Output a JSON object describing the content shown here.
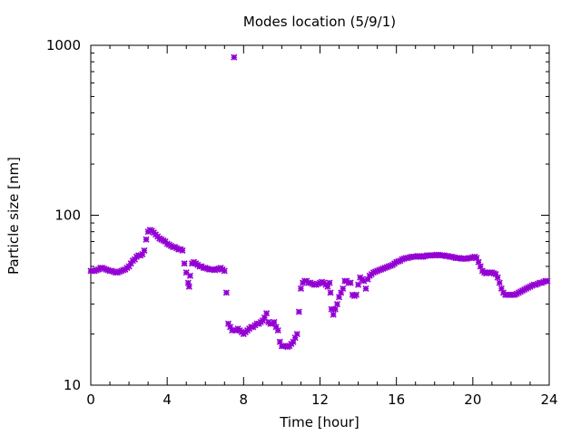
{
  "chart_data": {
    "type": "scatter",
    "title": "Modes location (5/9/1)",
    "xlabel": "Time [hour]",
    "ylabel": "Particle size [nm]",
    "xlim": [
      0,
      24
    ],
    "ylim": [
      10,
      1000
    ],
    "yscale": "log",
    "grid": false,
    "legend": "none",
    "x_ticks": [
      0,
      4,
      8,
      12,
      16,
      20,
      24
    ],
    "x_tick_labels": [
      "0",
      "4",
      "8",
      "12",
      "16",
      "20",
      "24"
    ],
    "y_ticks": [
      10,
      100,
      1000
    ],
    "y_tick_labels": [
      "10",
      "100",
      "1000"
    ],
    "marker_color": "#9400d3",
    "series": [
      {
        "marker": "asterisk",
        "points": [
          [
            0.0,
            47
          ],
          [
            0.1,
            47
          ],
          [
            0.2,
            47
          ],
          [
            0.3,
            47.5
          ],
          [
            0.4,
            48
          ],
          [
            0.5,
            49
          ],
          [
            0.6,
            49
          ],
          [
            0.7,
            48.5
          ],
          [
            0.8,
            48
          ],
          [
            0.9,
            47.5
          ],
          [
            1.0,
            47
          ],
          [
            1.1,
            47
          ],
          [
            1.2,
            46.5
          ],
          [
            1.3,
            46
          ],
          [
            1.4,
            46
          ],
          [
            1.5,
            46.5
          ],
          [
            1.6,
            47
          ],
          [
            1.7,
            47.5
          ],
          [
            1.8,
            48
          ],
          [
            1.9,
            49
          ],
          [
            2.0,
            50
          ],
          [
            2.1,
            52
          ],
          [
            2.2,
            54
          ],
          [
            2.3,
            55
          ],
          [
            2.4,
            57
          ],
          [
            2.5,
            58
          ],
          [
            2.6,
            58
          ],
          [
            2.7,
            59
          ],
          [
            2.8,
            62
          ],
          [
            2.9,
            72
          ],
          [
            3.0,
            80
          ],
          [
            3.1,
            82
          ],
          [
            3.2,
            81
          ],
          [
            3.3,
            79
          ],
          [
            3.4,
            77
          ],
          [
            3.5,
            75
          ],
          [
            3.6,
            73
          ],
          [
            3.7,
            72
          ],
          [
            3.8,
            71
          ],
          [
            3.9,
            70
          ],
          [
            4.0,
            68
          ],
          [
            4.1,
            67
          ],
          [
            4.2,
            66
          ],
          [
            4.3,
            65
          ],
          [
            4.4,
            65
          ],
          [
            4.5,
            64
          ],
          [
            4.6,
            63
          ],
          [
            4.7,
            63
          ],
          [
            4.8,
            62
          ],
          [
            4.9,
            52
          ],
          [
            5.0,
            46
          ],
          [
            5.1,
            40
          ],
          [
            5.15,
            38
          ],
          [
            5.2,
            44
          ],
          [
            5.3,
            52
          ],
          [
            5.4,
            53
          ],
          [
            5.5,
            52
          ],
          [
            5.6,
            51
          ],
          [
            5.7,
            50
          ],
          [
            5.8,
            50
          ],
          [
            5.9,
            49
          ],
          [
            6.0,
            49
          ],
          [
            6.1,
            48.5
          ],
          [
            6.2,
            48
          ],
          [
            6.3,
            48
          ],
          [
            6.4,
            48
          ],
          [
            6.5,
            47.5
          ],
          [
            6.6,
            48
          ],
          [
            6.7,
            48.5
          ],
          [
            6.8,
            49
          ],
          [
            6.9,
            48
          ],
          [
            7.0,
            47
          ],
          [
            7.1,
            35
          ],
          [
            7.2,
            23
          ],
          [
            7.3,
            22
          ],
          [
            7.4,
            21
          ],
          [
            7.5,
            850
          ],
          [
            7.6,
            21
          ],
          [
            7.7,
            21.5
          ],
          [
            7.8,
            21
          ],
          [
            7.9,
            20.5
          ],
          [
            8.0,
            20
          ],
          [
            8.1,
            20.5
          ],
          [
            8.2,
            21
          ],
          [
            8.3,
            21.5
          ],
          [
            8.4,
            22
          ],
          [
            8.5,
            22
          ],
          [
            8.6,
            22.5
          ],
          [
            8.7,
            23
          ],
          [
            8.8,
            23
          ],
          [
            8.9,
            23.5
          ],
          [
            9.0,
            24
          ],
          [
            9.1,
            25
          ],
          [
            9.2,
            26.5
          ],
          [
            9.3,
            23.5
          ],
          [
            9.4,
            23
          ],
          [
            9.5,
            23
          ],
          [
            9.6,
            23.5
          ],
          [
            9.7,
            22
          ],
          [
            9.8,
            21
          ],
          [
            9.9,
            18
          ],
          [
            10.0,
            17
          ],
          [
            10.1,
            17
          ],
          [
            10.2,
            17
          ],
          [
            10.3,
            16.8
          ],
          [
            10.4,
            17
          ],
          [
            10.5,
            17.5
          ],
          [
            10.6,
            18
          ],
          [
            10.7,
            19
          ],
          [
            10.8,
            20
          ],
          [
            10.9,
            27
          ],
          [
            11.0,
            37
          ],
          [
            11.1,
            40
          ],
          [
            11.2,
            41
          ],
          [
            11.3,
            41
          ],
          [
            11.4,
            40
          ],
          [
            11.5,
            40
          ],
          [
            11.6,
            39.5
          ],
          [
            11.7,
            39
          ],
          [
            11.8,
            39
          ],
          [
            11.9,
            39.5
          ],
          [
            12.0,
            40
          ],
          [
            12.1,
            40.5
          ],
          [
            12.2,
            40
          ],
          [
            12.3,
            39
          ],
          [
            12.4,
            38
          ],
          [
            12.5,
            40
          ],
          [
            12.55,
            35
          ],
          [
            12.6,
            28
          ],
          [
            12.7,
            26
          ],
          [
            12.8,
            28
          ],
          [
            12.9,
            30
          ],
          [
            13.0,
            33
          ],
          [
            13.1,
            35
          ],
          [
            13.2,
            37
          ],
          [
            13.3,
            41
          ],
          [
            13.4,
            41
          ],
          [
            13.5,
            40
          ],
          [
            13.6,
            40
          ],
          [
            13.7,
            34
          ],
          [
            13.8,
            33.5
          ],
          [
            13.9,
            34
          ],
          [
            14.0,
            39
          ],
          [
            14.1,
            43
          ],
          [
            14.2,
            42
          ],
          [
            14.3,
            41
          ],
          [
            14.4,
            37
          ],
          [
            14.5,
            42
          ],
          [
            14.6,
            44
          ],
          [
            14.7,
            45
          ],
          [
            14.8,
            46
          ],
          [
            14.9,
            46.5
          ],
          [
            15.0,
            47
          ],
          [
            15.1,
            47.5
          ],
          [
            15.2,
            48
          ],
          [
            15.3,
            48.5
          ],
          [
            15.4,
            49
          ],
          [
            15.5,
            49.5
          ],
          [
            15.6,
            50
          ],
          [
            15.7,
            50.5
          ],
          [
            15.8,
            51
          ],
          [
            15.9,
            52
          ],
          [
            16.0,
            53
          ],
          [
            16.1,
            53.5
          ],
          [
            16.2,
            54
          ],
          [
            16.3,
            55
          ],
          [
            16.4,
            55.5
          ],
          [
            16.5,
            56
          ],
          [
            16.6,
            56
          ],
          [
            16.7,
            56.5
          ],
          [
            16.8,
            57
          ],
          [
            16.9,
            57
          ],
          [
            17.0,
            57
          ],
          [
            17.1,
            57.5
          ],
          [
            17.2,
            57.5
          ],
          [
            17.3,
            57
          ],
          [
            17.4,
            57
          ],
          [
            17.5,
            57.5
          ],
          [
            17.6,
            58
          ],
          [
            17.7,
            58
          ],
          [
            17.8,
            58
          ],
          [
            17.9,
            58
          ],
          [
            18.0,
            58
          ],
          [
            18.1,
            58.5
          ],
          [
            18.2,
            58.5
          ],
          [
            18.3,
            58
          ],
          [
            18.4,
            58
          ],
          [
            18.5,
            58
          ],
          [
            18.6,
            57.5
          ],
          [
            18.7,
            57.5
          ],
          [
            18.8,
            57
          ],
          [
            18.9,
            57
          ],
          [
            19.0,
            56.5
          ],
          [
            19.1,
            56
          ],
          [
            19.2,
            56
          ],
          [
            19.3,
            56
          ],
          [
            19.4,
            55.5
          ],
          [
            19.5,
            55.5
          ],
          [
            19.6,
            55.5
          ],
          [
            19.7,
            55.5
          ],
          [
            19.8,
            56
          ],
          [
            19.9,
            56
          ],
          [
            20.0,
            56.5
          ],
          [
            20.1,
            57
          ],
          [
            20.2,
            56
          ],
          [
            20.3,
            53
          ],
          [
            20.4,
            50
          ],
          [
            20.5,
            47
          ],
          [
            20.6,
            46
          ],
          [
            20.7,
            45.5
          ],
          [
            20.8,
            46
          ],
          [
            20.9,
            46
          ],
          [
            21.0,
            46
          ],
          [
            21.1,
            45.5
          ],
          [
            21.2,
            45
          ],
          [
            21.3,
            43
          ],
          [
            21.4,
            40
          ],
          [
            21.5,
            37
          ],
          [
            21.6,
            35
          ],
          [
            21.7,
            34
          ],
          [
            21.8,
            34
          ],
          [
            21.9,
            34
          ],
          [
            22.0,
            34
          ],
          [
            22.1,
            34
          ],
          [
            22.2,
            34
          ],
          [
            22.3,
            34.5
          ],
          [
            22.4,
            35
          ],
          [
            22.5,
            35.5
          ],
          [
            22.6,
            36
          ],
          [
            22.7,
            36.5
          ],
          [
            22.8,
            37
          ],
          [
            22.9,
            37.5
          ],
          [
            23.0,
            38
          ],
          [
            23.1,
            38.5
          ],
          [
            23.2,
            39
          ],
          [
            23.3,
            39
          ],
          [
            23.4,
            39.5
          ],
          [
            23.5,
            40
          ],
          [
            23.6,
            40
          ],
          [
            23.7,
            40.5
          ],
          [
            23.8,
            41
          ],
          [
            23.9,
            41
          ]
        ]
      }
    ]
  }
}
